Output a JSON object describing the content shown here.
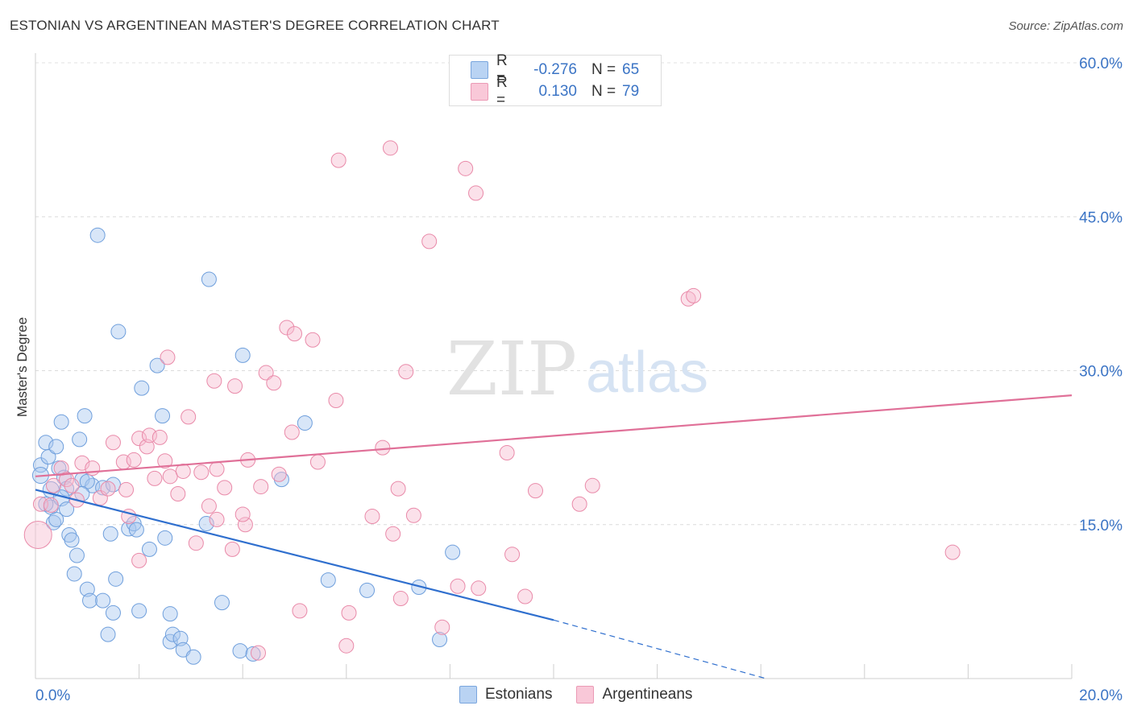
{
  "title": "ESTONIAN VS ARGENTINEAN MASTER'S DEGREE CORRELATION CHART",
  "source": "Source: ZipAtlas.com",
  "watermark": {
    "zip": "ZIP",
    "atlas": "atlas"
  },
  "legend": {
    "r_label": "R =",
    "n_label": "N =",
    "rows": [
      {
        "name": "Estonians",
        "r": "-0.276",
        "n": "65",
        "color": "#a9c8f0",
        "stroke": "#6f9fdc"
      },
      {
        "name": "Argentineans",
        "r": "0.130",
        "n": "79",
        "color": "#f7bcd0",
        "stroke": "#e98aa9"
      }
    ]
  },
  "chart_data": {
    "type": "scatter",
    "title": "ESTONIAN VS ARGENTINEAN MASTER'S DEGREE CORRELATION CHART",
    "ylabel": "Master's Degree",
    "xlabel": "",
    "xlim": [
      0,
      20
    ],
    "ylim": [
      0,
      60
    ],
    "x_tick_labels": [
      {
        "value": 0,
        "label": "0.0%"
      },
      {
        "value": 20,
        "label": "20.0%"
      }
    ],
    "y_tick_labels": [
      {
        "value": 15,
        "label": "15.0%"
      },
      {
        "value": 30,
        "label": "30.0%"
      },
      {
        "value": 45,
        "label": "45.0%"
      },
      {
        "value": 60,
        "label": "60.0%"
      }
    ],
    "series": [
      {
        "name": "Estonians",
        "fill": "#a9c8f0",
        "stroke": "#6f9fdc",
        "line_color": "#2f6fce",
        "trend": {
          "x0": 0,
          "y0": 18.4,
          "x1": 10.0,
          "y1": 5.7,
          "dash_x1": 14.1,
          "dash_y1": 0
        },
        "points": [
          [
            0.1,
            20.8
          ],
          [
            0.2,
            23.0
          ],
          [
            0.25,
            21.6
          ],
          [
            0.3,
            16.7
          ],
          [
            0.35,
            15.2
          ],
          [
            0.4,
            22.6
          ],
          [
            0.45,
            20.5
          ],
          [
            0.5,
            25.0
          ],
          [
            0.55,
            19.6
          ],
          [
            0.6,
            18.5
          ],
          [
            0.65,
            14.0
          ],
          [
            0.7,
            13.5
          ],
          [
            0.75,
            10.2
          ],
          [
            0.8,
            12.0
          ],
          [
            0.85,
            23.3
          ],
          [
            0.9,
            19.4
          ],
          [
            0.95,
            25.6
          ],
          [
            1.0,
            8.7
          ],
          [
            1.05,
            7.6
          ],
          [
            1.1,
            18.8
          ],
          [
            1.2,
            43.2
          ],
          [
            1.3,
            7.6
          ],
          [
            1.4,
            4.3
          ],
          [
            1.45,
            14.1
          ],
          [
            1.5,
            6.4
          ],
          [
            1.55,
            9.7
          ],
          [
            1.6,
            33.8
          ],
          [
            1.8,
            14.6
          ],
          [
            1.9,
            15.1
          ],
          [
            1.95,
            14.5
          ],
          [
            2.0,
            6.6
          ],
          [
            2.05,
            28.3
          ],
          [
            2.2,
            12.6
          ],
          [
            2.35,
            30.5
          ],
          [
            2.45,
            25.6
          ],
          [
            2.5,
            13.7
          ],
          [
            2.6,
            6.3
          ],
          [
            2.6,
            3.6
          ],
          [
            2.65,
            4.3
          ],
          [
            2.8,
            3.9
          ],
          [
            2.85,
            2.8
          ],
          [
            3.05,
            2.1
          ],
          [
            3.3,
            15.1
          ],
          [
            3.35,
            38.9
          ],
          [
            3.6,
            7.4
          ],
          [
            3.95,
            2.7
          ],
          [
            4.0,
            31.5
          ],
          [
            4.2,
            2.4
          ],
          [
            4.75,
            19.4
          ],
          [
            5.2,
            24.9
          ],
          [
            5.65,
            9.6
          ],
          [
            6.4,
            8.6
          ],
          [
            7.4,
            8.9
          ],
          [
            7.8,
            3.8
          ],
          [
            8.05,
            12.3
          ],
          [
            0.1,
            19.8
          ],
          [
            0.3,
            18.4
          ],
          [
            0.5,
            17.6
          ],
          [
            1.0,
            19.2
          ],
          [
            1.3,
            18.6
          ],
          [
            0.2,
            17.0
          ],
          [
            0.6,
            16.5
          ],
          [
            0.9,
            18.0
          ],
          [
            0.4,
            15.5
          ],
          [
            1.5,
            18.9
          ]
        ]
      },
      {
        "name": "Argentineans",
        "fill": "#f7bcd0",
        "stroke": "#e98aa9",
        "line_color": "#e07098",
        "trend": {
          "x0": 0,
          "y0": 19.7,
          "x1": 20.0,
          "y1": 27.6
        },
        "points": [
          [
            0.05,
            14.0
          ],
          [
            0.1,
            17.0
          ],
          [
            0.3,
            16.9
          ],
          [
            0.35,
            18.8
          ],
          [
            0.5,
            20.5
          ],
          [
            0.6,
            19.4
          ],
          [
            0.7,
            18.8
          ],
          [
            0.8,
            17.4
          ],
          [
            0.9,
            21.0
          ],
          [
            1.1,
            20.5
          ],
          [
            1.25,
            17.6
          ],
          [
            1.4,
            18.5
          ],
          [
            1.5,
            23.0
          ],
          [
            1.7,
            21.1
          ],
          [
            1.75,
            18.4
          ],
          [
            1.8,
            15.8
          ],
          [
            1.9,
            21.3
          ],
          [
            2.0,
            23.4
          ],
          [
            2.15,
            22.6
          ],
          [
            2.2,
            23.7
          ],
          [
            2.3,
            19.5
          ],
          [
            2.4,
            23.5
          ],
          [
            2.5,
            21.2
          ],
          [
            2.55,
            31.3
          ],
          [
            2.6,
            19.7
          ],
          [
            2.75,
            18.0
          ],
          [
            2.85,
            20.2
          ],
          [
            2.95,
            25.5
          ],
          [
            3.1,
            13.2
          ],
          [
            3.2,
            20.1
          ],
          [
            3.35,
            16.8
          ],
          [
            3.45,
            29.0
          ],
          [
            3.5,
            20.4
          ],
          [
            3.65,
            18.6
          ],
          [
            3.8,
            12.6
          ],
          [
            3.85,
            28.5
          ],
          [
            4.05,
            15.0
          ],
          [
            4.1,
            21.3
          ],
          [
            4.35,
            18.7
          ],
          [
            4.45,
            29.8
          ],
          [
            4.6,
            28.8
          ],
          [
            4.7,
            19.9
          ],
          [
            4.85,
            34.2
          ],
          [
            4.95,
            24.0
          ],
          [
            5.0,
            33.6
          ],
          [
            5.1,
            6.6
          ],
          [
            5.35,
            33.0
          ],
          [
            5.45,
            21.1
          ],
          [
            5.8,
            27.1
          ],
          [
            5.85,
            50.5
          ],
          [
            6.0,
            3.2
          ],
          [
            6.05,
            6.4
          ],
          [
            6.5,
            15.8
          ],
          [
            6.7,
            22.5
          ],
          [
            6.85,
            51.7
          ],
          [
            6.9,
            14.1
          ],
          [
            7.05,
            7.8
          ],
          [
            7.15,
            29.9
          ],
          [
            7.3,
            15.9
          ],
          [
            7.6,
            42.6
          ],
          [
            7.85,
            5.0
          ],
          [
            8.15,
            9.0
          ],
          [
            8.3,
            49.7
          ],
          [
            8.5,
            47.3
          ],
          [
            8.55,
            8.8
          ],
          [
            9.1,
            22.0
          ],
          [
            9.2,
            12.1
          ],
          [
            9.45,
            8.0
          ],
          [
            9.65,
            18.3
          ],
          [
            10.5,
            17.0
          ],
          [
            10.75,
            18.8
          ],
          [
            12.6,
            37.0
          ],
          [
            12.7,
            37.3
          ],
          [
            17.7,
            12.3
          ],
          [
            3.5,
            15.5
          ],
          [
            4.3,
            2.5
          ],
          [
            7.0,
            18.5
          ],
          [
            4.0,
            16.0
          ],
          [
            2.0,
            11.5
          ]
        ]
      }
    ]
  }
}
